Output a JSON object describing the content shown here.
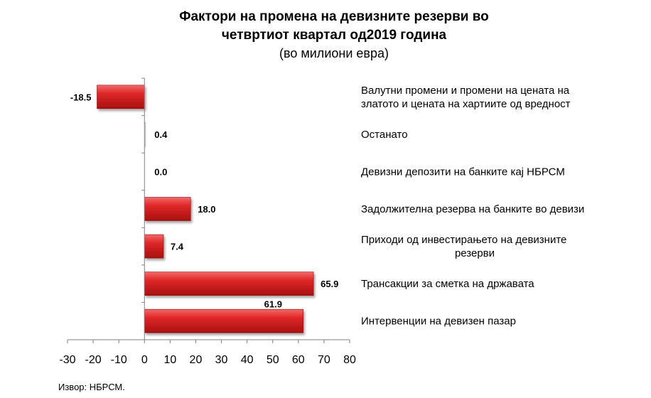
{
  "chart_data": {
    "type": "bar",
    "orientation": "horizontal",
    "title_lines": [
      "Фактори на промена на девизните резерви во",
      "четвртиот квартал од2019 година"
    ],
    "subtitle": "(во милиони евра)",
    "categories": [
      [
        "Валутни промени и промени на цената на",
        "златото и цената на хартиите од вредност"
      ],
      [
        "Останато"
      ],
      [
        "Девизни депозити на банките кај НБРСМ"
      ],
      [
        "Задолжителна резерва на банките во девизи"
      ],
      [
        "Приходи од инвестирањето на девизните",
        "резерви"
      ],
      [
        "Трансакции за сметка на државата"
      ],
      [
        "Интервенции на девизен пазар"
      ]
    ],
    "values": [
      -18.5,
      0.4,
      0.0,
      18.0,
      7.4,
      65.9,
      61.9
    ],
    "value_labels": [
      "-18.5",
      "0.4",
      "0.0",
      "18.0",
      "7.4",
      "65.9",
      "61.9"
    ],
    "xlim": [
      -30,
      80
    ],
    "x_ticks": [
      "-30",
      "-20",
      "-10",
      "0",
      "10",
      "20",
      "30",
      "40",
      "50",
      "60",
      "70",
      "80"
    ],
    "bar_color": "#d41f1f",
    "grid": false,
    "legend": "none"
  },
  "source": "Извор: НБРСМ."
}
